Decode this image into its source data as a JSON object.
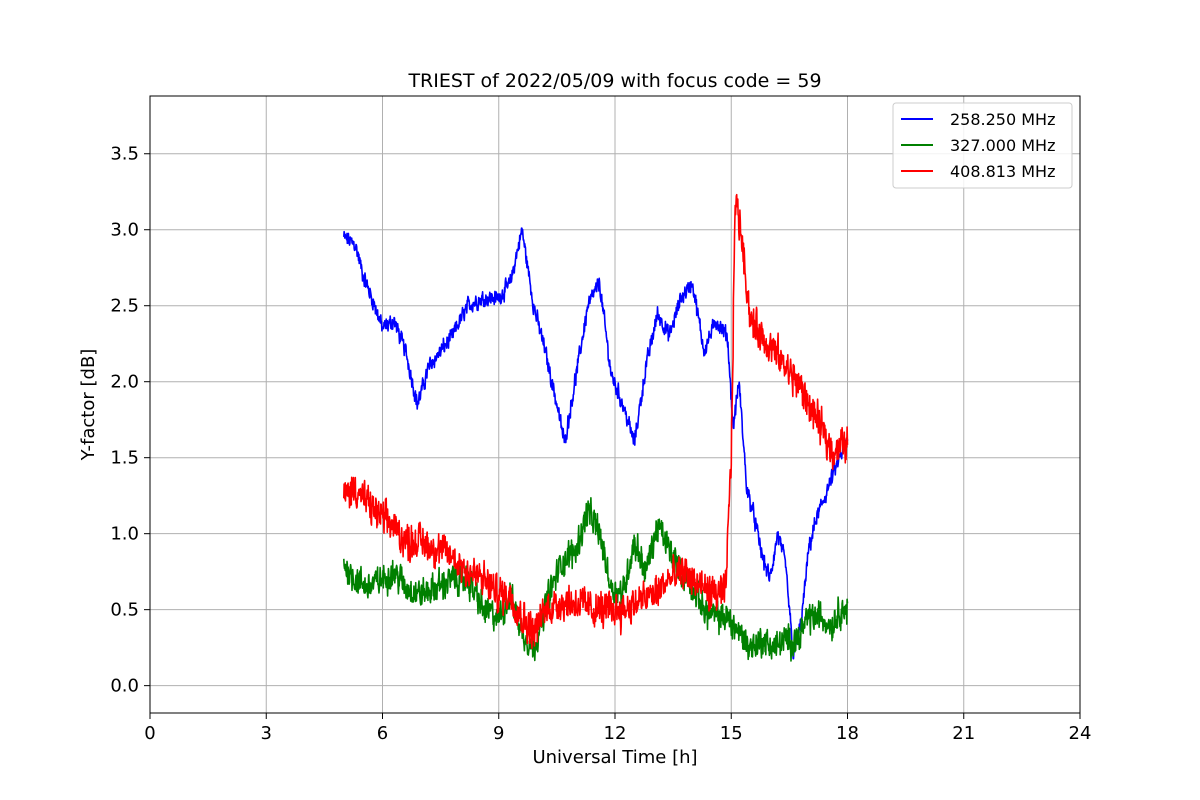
{
  "chart_data": {
    "type": "line",
    "title": "TRIEST of 2022/05/09 with focus code = 59",
    "xlabel": "Universal Time [h]",
    "ylabel": "Y-factor [dB]",
    "xlim": [
      0,
      24
    ],
    "ylim": [
      -0.18,
      3.88
    ],
    "xticks": [
      0,
      3,
      6,
      9,
      12,
      15,
      18,
      21,
      24
    ],
    "xtick_labels": [
      "0",
      "3",
      "6",
      "9",
      "12",
      "15",
      "18",
      "21",
      "24"
    ],
    "yticks": [
      0.0,
      0.5,
      1.0,
      1.5,
      2.0,
      2.5,
      3.0,
      3.5
    ],
    "ytick_labels": [
      "0.0",
      "0.5",
      "1.0",
      "1.5",
      "2.0",
      "2.5",
      "3.0",
      "3.5"
    ],
    "grid": true,
    "legend_position": "top-right",
    "series": [
      {
        "name": "258.250 MHz",
        "color": "#0000ff",
        "noise": 0.06,
        "x": [
          5.0,
          5.3,
          5.5,
          5.8,
          6.0,
          6.3,
          6.6,
          6.9,
          7.2,
          7.5,
          7.8,
          8.2,
          8.6,
          9.0,
          9.3,
          9.6,
          9.9,
          10.2,
          10.5,
          10.7,
          11.0,
          11.3,
          11.6,
          11.9,
          12.2,
          12.5,
          12.8,
          13.1,
          13.4,
          13.7,
          14.0,
          14.3,
          14.6,
          14.9,
          15.05,
          15.2,
          15.4,
          15.6,
          15.8,
          16.0,
          16.2,
          16.4,
          16.6,
          16.8,
          17.0,
          17.2,
          17.5,
          17.8,
          18.0
        ],
        "y": [
          2.95,
          2.9,
          2.7,
          2.5,
          2.35,
          2.4,
          2.2,
          1.85,
          2.1,
          2.2,
          2.3,
          2.5,
          2.55,
          2.55,
          2.65,
          3.0,
          2.5,
          2.2,
          1.85,
          1.6,
          2.05,
          2.5,
          2.65,
          2.05,
          1.85,
          1.6,
          2.1,
          2.45,
          2.3,
          2.55,
          2.65,
          2.2,
          2.4,
          2.3,
          1.7,
          2.0,
          1.3,
          1.1,
          0.85,
          0.7,
          1.0,
          0.8,
          0.2,
          0.4,
          0.9,
          1.1,
          1.3,
          1.5,
          1.6
        ]
      },
      {
        "name": "327.000 MHz",
        "color": "#008000",
        "noise": 0.11,
        "x": [
          5.0,
          5.3,
          5.6,
          6.0,
          6.3,
          6.6,
          7.0,
          7.4,
          7.8,
          8.2,
          8.6,
          9.0,
          9.3,
          9.6,
          9.9,
          10.3,
          10.6,
          11.0,
          11.3,
          11.6,
          11.9,
          12.2,
          12.5,
          12.8,
          13.1,
          13.4,
          13.7,
          14.0,
          14.3,
          14.6,
          14.9,
          15.2,
          15.5,
          15.8,
          16.1,
          16.4,
          16.7,
          17.0,
          17.3,
          17.6,
          17.8,
          18.0
        ],
        "y": [
          0.8,
          0.7,
          0.65,
          0.7,
          0.75,
          0.65,
          0.6,
          0.65,
          0.7,
          0.7,
          0.5,
          0.45,
          0.6,
          0.35,
          0.25,
          0.6,
          0.8,
          0.9,
          1.15,
          1.0,
          0.65,
          0.6,
          0.95,
          0.75,
          1.05,
          0.9,
          0.75,
          0.65,
          0.5,
          0.45,
          0.45,
          0.35,
          0.25,
          0.3,
          0.25,
          0.3,
          0.3,
          0.45,
          0.45,
          0.4,
          0.5,
          0.5
        ]
      },
      {
        "name": "408.813 MHz",
        "color": "#ff0000",
        "noise": 0.13,
        "x": [
          5.0,
          5.3,
          5.6,
          6.0,
          6.3,
          6.6,
          7.0,
          7.4,
          7.8,
          8.2,
          8.6,
          9.0,
          9.3,
          9.6,
          9.9,
          10.2,
          10.6,
          11.0,
          11.4,
          11.8,
          12.2,
          12.6,
          13.0,
          13.4,
          13.8,
          14.2,
          14.6,
          14.85,
          15.0,
          15.1,
          15.25,
          15.5,
          15.8,
          16.1,
          16.4,
          16.7,
          17.0,
          17.3,
          17.6,
          18.0
        ],
        "y": [
          1.25,
          1.3,
          1.2,
          1.1,
          1.05,
          0.95,
          0.95,
          0.9,
          0.85,
          0.75,
          0.7,
          0.6,
          0.6,
          0.45,
          0.35,
          0.5,
          0.55,
          0.55,
          0.5,
          0.5,
          0.5,
          0.55,
          0.6,
          0.7,
          0.75,
          0.65,
          0.6,
          0.6,
          1.5,
          3.2,
          3.0,
          2.4,
          2.3,
          2.2,
          2.1,
          2.0,
          1.85,
          1.7,
          1.55,
          1.6
        ]
      }
    ]
  }
}
